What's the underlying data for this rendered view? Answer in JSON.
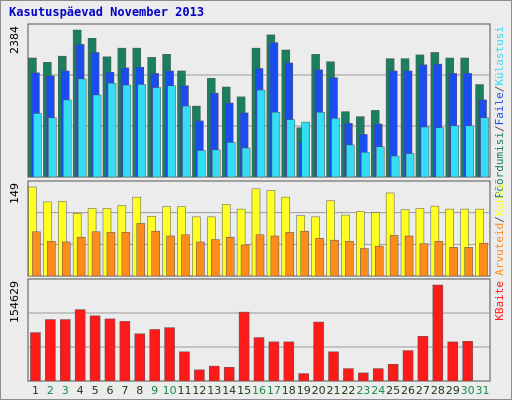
{
  "chart_data": {
    "type": "bar",
    "title": "Kasutuspäevad November 2013",
    "categories": [
      "1",
      "2",
      "3",
      "4",
      "5",
      "6",
      "7",
      "8",
      "9",
      "10",
      "11",
      "12",
      "13",
      "14",
      "15",
      "16",
      "17",
      "18",
      "19",
      "20",
      "21",
      "22",
      "23",
      "24",
      "25",
      "26",
      "27",
      "28",
      "29",
      "30",
      "31"
    ],
    "weekend_days": [
      "2",
      "3",
      "9",
      "10",
      "16",
      "17",
      "23",
      "24",
      "30",
      "31"
    ],
    "panels": [
      {
        "name": "top",
        "ylim": [
          0,
          2384
        ],
        "max_label": "2384",
        "series": [
          {
            "name": "Pöördumisi",
            "color": "#1a7f5e",
            "values": [
              1930,
              1860,
              1960,
              2384,
              2250,
              1950,
              2090,
              2090,
              1940,
              1990,
              1720,
              1150,
              1600,
              1460,
              1300,
              2090,
              2305,
              2060,
              800,
              1990,
              1870,
              1060,
              980,
              1080,
              1920,
              1920,
              1980,
              2020,
              1930,
              1930,
              1500
            ]
          },
          {
            "name": "Faile",
            "color": "#1a4cf0",
            "values": [
              1690,
              1640,
              1720,
              2150,
              2020,
              1700,
              1770,
              1780,
              1680,
              1720,
              1480,
              910,
              1360,
              1200,
              1040,
              1760,
              2180,
              1850,
              570,
              1740,
              1610,
              870,
              690,
              860,
              1720,
              1720,
              1820,
              1830,
              1680,
              1680,
              1250
            ]
          },
          {
            "name": "Külastusi",
            "color": "#33ddf5",
            "values": [
              1030,
              960,
              1250,
              1590,
              1330,
              1520,
              1490,
              1500,
              1450,
              1480,
              1150,
              430,
              440,
              560,
              470,
              1410,
              1050,
              930,
              890,
              1050,
              950,
              520,
              400,
              490,
              340,
              380,
              810,
              800,
              830,
              830,
              960
            ]
          }
        ]
      },
      {
        "name": "middle",
        "ylim": [
          0,
          149
        ],
        "max_label": "149",
        "series": [
          {
            "name": "Kohti",
            "color": "#ffff22",
            "values": [
              149,
              124,
              125,
              105,
              113,
              113,
              118,
              132,
              100,
              116,
              116,
              99,
              99,
              120,
              112,
              146,
              143,
              132,
              101,
              99,
              126,
              102,
              108,
              106,
              139,
              111,
              113,
              117,
              112,
              112,
              112
            ]
          },
          {
            "name": "Arvuteid",
            "color": "#ff8c1a",
            "values": [
              74,
              58,
              57,
              65,
              74,
              73,
              73,
              88,
              75,
              67,
              69,
              57,
              61,
              65,
              52,
              69,
              67,
              73,
              75,
              63,
              60,
              58,
              46,
              50,
              68,
              67,
              54,
              58,
              48,
              48,
              55
            ]
          }
        ]
      },
      {
        "name": "bottom",
        "ylim": [
          0,
          154629
        ],
        "max_label": "154629",
        "series": [
          {
            "name": "KBaite",
            "color": "#ff1a1a",
            "values": [
              78000,
              99000,
              99000,
              115000,
              105000,
              100000,
              96000,
              76000,
              83000,
              86000,
              47000,
              18000,
              24000,
              22000,
              111000,
              70000,
              63000,
              63000,
              12000,
              95000,
              47000,
              20000,
              13000,
              20000,
              27000,
              49000,
              72000,
              154629,
              63000,
              64000,
              0
            ]
          }
        ]
      }
    ],
    "side_labels": {
      "top": [
        "Pöördumisi",
        "/",
        "Faile",
        "/",
        "Külastusi"
      ],
      "top_colors": [
        "#1a7f5e",
        "#555555",
        "#1a4cf0",
        "#555555",
        "#33ddf5"
      ],
      "middle": [
        "Arvuteid",
        "/",
        "Kohti"
      ],
      "middle_colors": [
        "#ff8c1a",
        "#555555",
        "#ffff22"
      ],
      "bottom": [
        "KBaite"
      ],
      "bottom_colors": [
        "#ff1a1a"
      ]
    },
    "colors": {
      "title": "#0000cc",
      "weekday_label": "#1c3a16",
      "weekend_label": "#1a8a4a",
      "panel_bg": "#ececec",
      "panel_border": "#555555",
      "gridline": "#9a9a9a"
    }
  }
}
